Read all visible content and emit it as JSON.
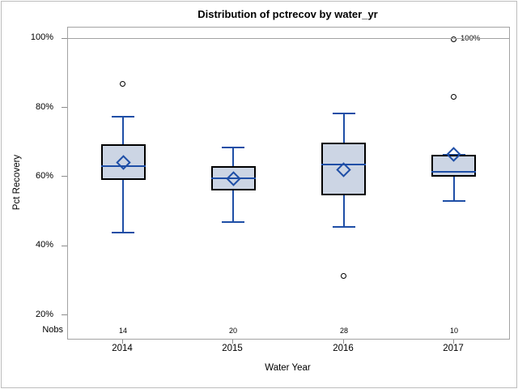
{
  "chart_data": {
    "type": "boxplot",
    "title": "Distribution of pctrecov by water_yr",
    "xlabel": "Water Year",
    "ylabel": "Pct Recovery",
    "ylim": [
      13,
      103
    ],
    "grid": false,
    "y_ticks": [
      {
        "value": 100,
        "label": "100%"
      },
      {
        "value": 80,
        "label": "80%"
      },
      {
        "value": 60,
        "label": "60%"
      },
      {
        "value": 40,
        "label": "40%"
      },
      {
        "value": 20,
        "label": "20%"
      }
    ],
    "refline": {
      "value": 100,
      "label": "100%"
    },
    "nobs_header": "Nobs",
    "groups": [
      {
        "category": "2014",
        "nobs": "14",
        "whisker_low": 43.7,
        "q1": 59.0,
        "median": 63.0,
        "q3": 69.3,
        "whisker_high": 77.3,
        "mean": 64.0,
        "outliers": [
          86.5
        ]
      },
      {
        "category": "2015",
        "nobs": "20",
        "whisker_low": 46.8,
        "q1": 56.0,
        "median": 59.5,
        "q3": 63.0,
        "whisker_high": 68.3,
        "mean": 59.3,
        "outliers": []
      },
      {
        "category": "2016",
        "nobs": "28",
        "whisker_low": 45.3,
        "q1": 54.5,
        "median": 63.5,
        "q3": 69.7,
        "whisker_high": 78.2,
        "mean": 61.8,
        "outliers": [
          31.0
        ]
      },
      {
        "category": "2017",
        "nobs": "10",
        "whisker_low": 52.8,
        "q1": 60.0,
        "median": 61.3,
        "q3": 66.3,
        "whisker_high": 66.3,
        "mean": 66.3,
        "outliers": [
          99.4,
          82.8
        ]
      }
    ]
  },
  "colors": {
    "box_fill": "#ccd5e4",
    "box_border": "#000000",
    "line_blue": "#1e4ea6",
    "axis_gray": "#a3a3a3",
    "tick_gray": "#8c8c8c",
    "text": "#000000"
  }
}
